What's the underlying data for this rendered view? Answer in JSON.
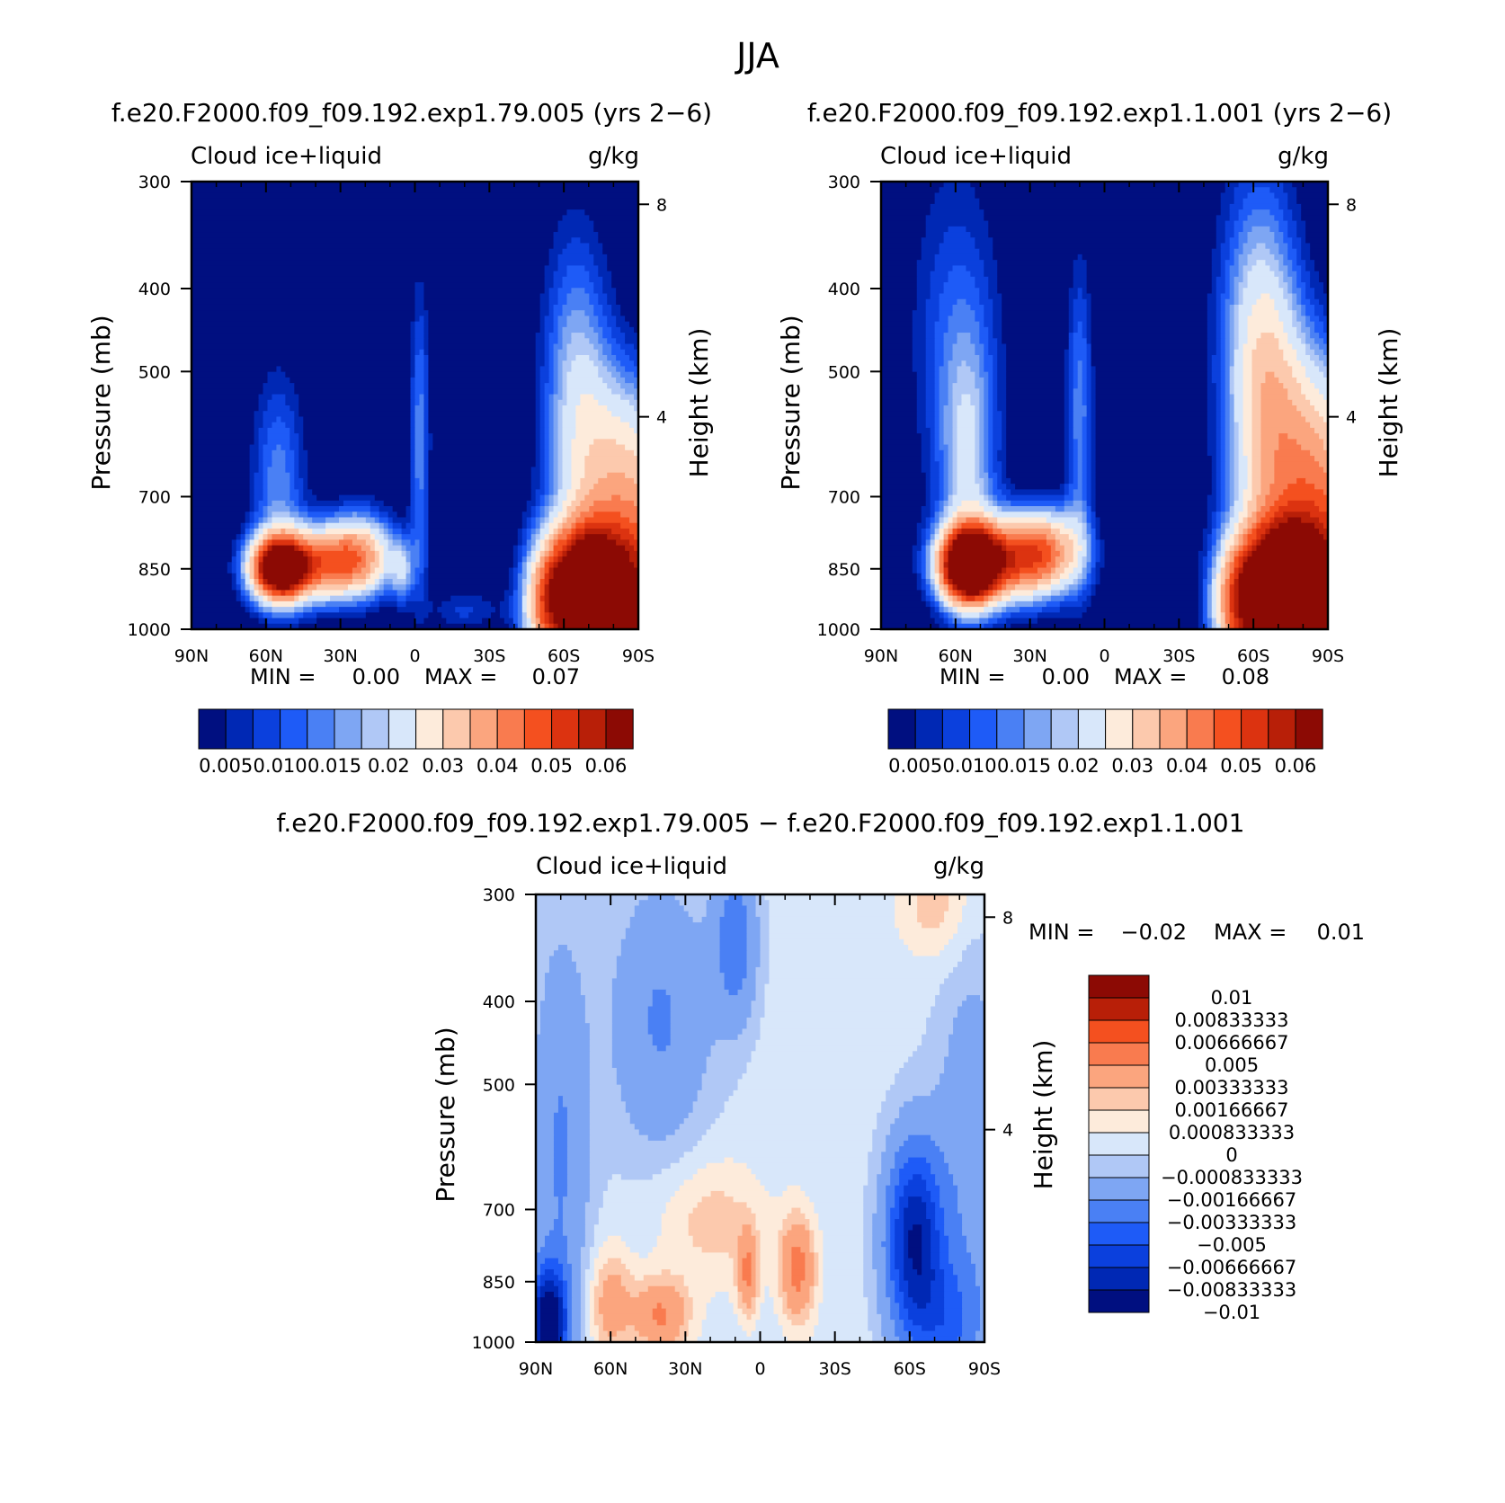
{
  "figure": {
    "main_title": "JJA"
  },
  "palettes": {
    "seq": [
      "#000f80",
      "#0028b4",
      "#0b40dd",
      "#1e5bf7",
      "#4a80f4",
      "#7ea6f3",
      "#b0c8f6",
      "#d8e7fa",
      "#fdebdb",
      "#fcc9ad",
      "#fba57e",
      "#f97b4f",
      "#f4501f",
      "#dc3310",
      "#b81f08",
      "#8c0a04"
    ],
    "div": [
      "#000f80",
      "#0028b4",
      "#0b40dd",
      "#1e5bf7",
      "#4a80f4",
      "#7ea6f3",
      "#b0c8f6",
      "#d8e7fa",
      "#fdebdb",
      "#fcc9ad",
      "#fba57e",
      "#f97b4f",
      "#f4501f",
      "#b81f08",
      "#8c0a04"
    ]
  },
  "chart_data": [
    {
      "type": "heatmap",
      "id": "panel-1",
      "title": "f.e20.F2000.f09_f09.192.exp1.79.005 (yrs 2−6)",
      "left_label": "Cloud ice+liquid",
      "right_label": "g/kg",
      "ylabel": "Pressure (mb)",
      "ylabel2": "Height (km)",
      "x_ticks": [
        "90N",
        "60N",
        "30N",
        "0",
        "30S",
        "60S",
        "90S"
      ],
      "y_ticks": [
        "300",
        "400",
        "500",
        "700",
        "850",
        "1000"
      ],
      "y2_ticks": [
        "8",
        "4"
      ],
      "min_text": "MIN =",
      "min_value": "0.00",
      "max_text": "MAX =",
      "max_value": "0.07",
      "colorbar_labels": [
        "0.005",
        "0.010",
        "0.015",
        "0.02",
        "0.03",
        "0.04",
        "0.05",
        "0.06"
      ],
      "field": {
        "blobs": [
          {
            "lat": -88,
            "p": 1000,
            "wlat": 18,
            "wlogp": 0.24,
            "amp": 0.064
          },
          {
            "lat": -70,
            "p": 880,
            "wlat": 9,
            "wlogp": 0.1,
            "amp": 0.052
          },
          {
            "lat": -55,
            "p": 930,
            "wlat": 8,
            "wlogp": 0.12,
            "amp": 0.04
          },
          {
            "lat": -65,
            "p": 520,
            "wlat": 10,
            "wlogp": 0.3,
            "amp": 0.018
          },
          {
            "lat": -85,
            "p": 620,
            "wlat": 14,
            "wlogp": 0.18,
            "amp": 0.02
          },
          {
            "lat": 55,
            "p": 850,
            "wlat": 8,
            "wlogp": 0.06,
            "amp": 0.06
          },
          {
            "lat": 35,
            "p": 840,
            "wlat": 16,
            "wlogp": 0.07,
            "amp": 0.04
          },
          {
            "lat": 22,
            "p": 800,
            "wlat": 10,
            "wlogp": 0.08,
            "amp": 0.018
          },
          {
            "lat": 55,
            "p": 680,
            "wlat": 8,
            "wlogp": 0.22,
            "amp": 0.014
          },
          {
            "lat": -2,
            "p": 600,
            "wlat": 3,
            "wlogp": 0.3,
            "amp": 0.014
          },
          {
            "lat": 5,
            "p": 860,
            "wlat": 3,
            "wlogp": 0.06,
            "amp": 0.012
          },
          {
            "lat": -20,
            "p": 950,
            "wlat": 10,
            "wlogp": 0.04,
            "amp": 0.008
          }
        ]
      }
    },
    {
      "type": "heatmap",
      "id": "panel-2",
      "title": "f.e20.F2000.f09_f09.192.exp1.1.001 (yrs 2−6)",
      "left_label": "Cloud ice+liquid",
      "right_label": "g/kg",
      "ylabel": "Pressure (mb)",
      "ylabel2": "Height (km)",
      "x_ticks": [
        "90N",
        "60N",
        "30N",
        "0",
        "30S",
        "60S",
        "90S"
      ],
      "y_ticks": [
        "300",
        "400",
        "500",
        "700",
        "850",
        "1000"
      ],
      "y2_ticks": [
        "8",
        "4"
      ],
      "min_text": "MIN =",
      "min_value": "0.00",
      "max_text": "MAX =",
      "max_value": "0.08",
      "colorbar_labels": [
        "0.005",
        "0.010",
        "0.015",
        "0.02",
        "0.03",
        "0.04",
        "0.05",
        "0.06"
      ],
      "field": {
        "blobs": [
          {
            "lat": -88,
            "p": 1000,
            "wlat": 18,
            "wlogp": 0.26,
            "amp": 0.07
          },
          {
            "lat": -72,
            "p": 880,
            "wlat": 9,
            "wlogp": 0.1,
            "amp": 0.056
          },
          {
            "lat": -55,
            "p": 930,
            "wlat": 8,
            "wlogp": 0.12,
            "amp": 0.042
          },
          {
            "lat": -65,
            "p": 520,
            "wlat": 11,
            "wlogp": 0.32,
            "amp": 0.02
          },
          {
            "lat": -85,
            "p": 600,
            "wlat": 14,
            "wlogp": 0.2,
            "amp": 0.022
          },
          {
            "lat": 55,
            "p": 845,
            "wlat": 8,
            "wlogp": 0.07,
            "amp": 0.068
          },
          {
            "lat": 38,
            "p": 830,
            "wlat": 16,
            "wlogp": 0.08,
            "amp": 0.044
          },
          {
            "lat": 22,
            "p": 800,
            "wlat": 10,
            "wlogp": 0.08,
            "amp": 0.02
          },
          {
            "lat": 55,
            "p": 650,
            "wlat": 8,
            "wlogp": 0.25,
            "amp": 0.016
          },
          {
            "lat": 10,
            "p": 560,
            "wlat": 4,
            "wlogp": 0.3,
            "amp": 0.014
          },
          {
            "lat": -60,
            "p": 450,
            "wlat": 12,
            "wlogp": 0.35,
            "amp": 0.01
          },
          {
            "lat": 60,
            "p": 450,
            "wlat": 14,
            "wlogp": 0.35,
            "amp": 0.01
          }
        ]
      }
    },
    {
      "type": "heatmap",
      "id": "panel-3",
      "title": "f.e20.F2000.f09_f09.192.exp1.79.005 − f.e20.F2000.f09_f09.192.exp1.1.001",
      "left_label": "Cloud ice+liquid",
      "right_label": "g/kg",
      "ylabel": "Pressure (mb)",
      "ylabel2": "Height (km)",
      "x_ticks": [
        "90N",
        "60N",
        "30N",
        "0",
        "30S",
        "60S",
        "90S"
      ],
      "y_ticks": [
        "300",
        "400",
        "500",
        "700",
        "850",
        "1000"
      ],
      "y2_ticks": [
        "8",
        "4"
      ],
      "min_text": "MIN =",
      "min_value": "−0.02",
      "max_text": "MAX =",
      "max_value": "0.01",
      "colorbar_labels": [
        "0.01",
        "0.00833333",
        "0.00666667",
        "0.005",
        "0.00333333",
        "0.00166667",
        "0.000833333",
        "0",
        "−0.000833333",
        "−0.00166667",
        "−0.00333333",
        "−0.005",
        "−0.00666667",
        "−0.00833333",
        "−0.01"
      ],
      "field": {
        "base": -0.0005,
        "blobs": [
          {
            "lat": -62,
            "p": 760,
            "wlat": 8,
            "wlogp": 0.18,
            "amp": -0.0095
          },
          {
            "lat": -75,
            "p": 950,
            "wlat": 10,
            "wlogp": 0.12,
            "amp": -0.004
          },
          {
            "lat": -85,
            "p": 600,
            "wlat": 10,
            "wlogp": 0.35,
            "amp": -0.0025
          },
          {
            "lat": 85,
            "p": 950,
            "wlat": 5,
            "wlogp": 0.1,
            "amp": -0.012
          },
          {
            "lat": 80,
            "p": 600,
            "wlat": 8,
            "wlogp": 0.4,
            "amp": -0.003
          },
          {
            "lat": 40,
            "p": 420,
            "wlat": 14,
            "wlogp": 0.25,
            "amp": -0.003
          },
          {
            "lat": 10,
            "p": 340,
            "wlat": 6,
            "wlogp": 0.15,
            "amp": -0.004
          },
          {
            "lat": -15,
            "p": 820,
            "wlat": 5,
            "wlogp": 0.1,
            "amp": 0.0045
          },
          {
            "lat": 5,
            "p": 830,
            "wlat": 3,
            "wlogp": 0.08,
            "amp": 0.0038
          },
          {
            "lat": 40,
            "p": 930,
            "wlat": 8,
            "wlogp": 0.07,
            "amp": 0.004
          },
          {
            "lat": 60,
            "p": 900,
            "wlat": 6,
            "wlogp": 0.1,
            "amp": 0.003
          },
          {
            "lat": 20,
            "p": 720,
            "wlat": 15,
            "wlogp": 0.12,
            "amp": 0.0018
          },
          {
            "lat": -70,
            "p": 310,
            "wlat": 10,
            "wlogp": 0.1,
            "amp": 0.0018
          }
        ]
      }
    }
  ]
}
